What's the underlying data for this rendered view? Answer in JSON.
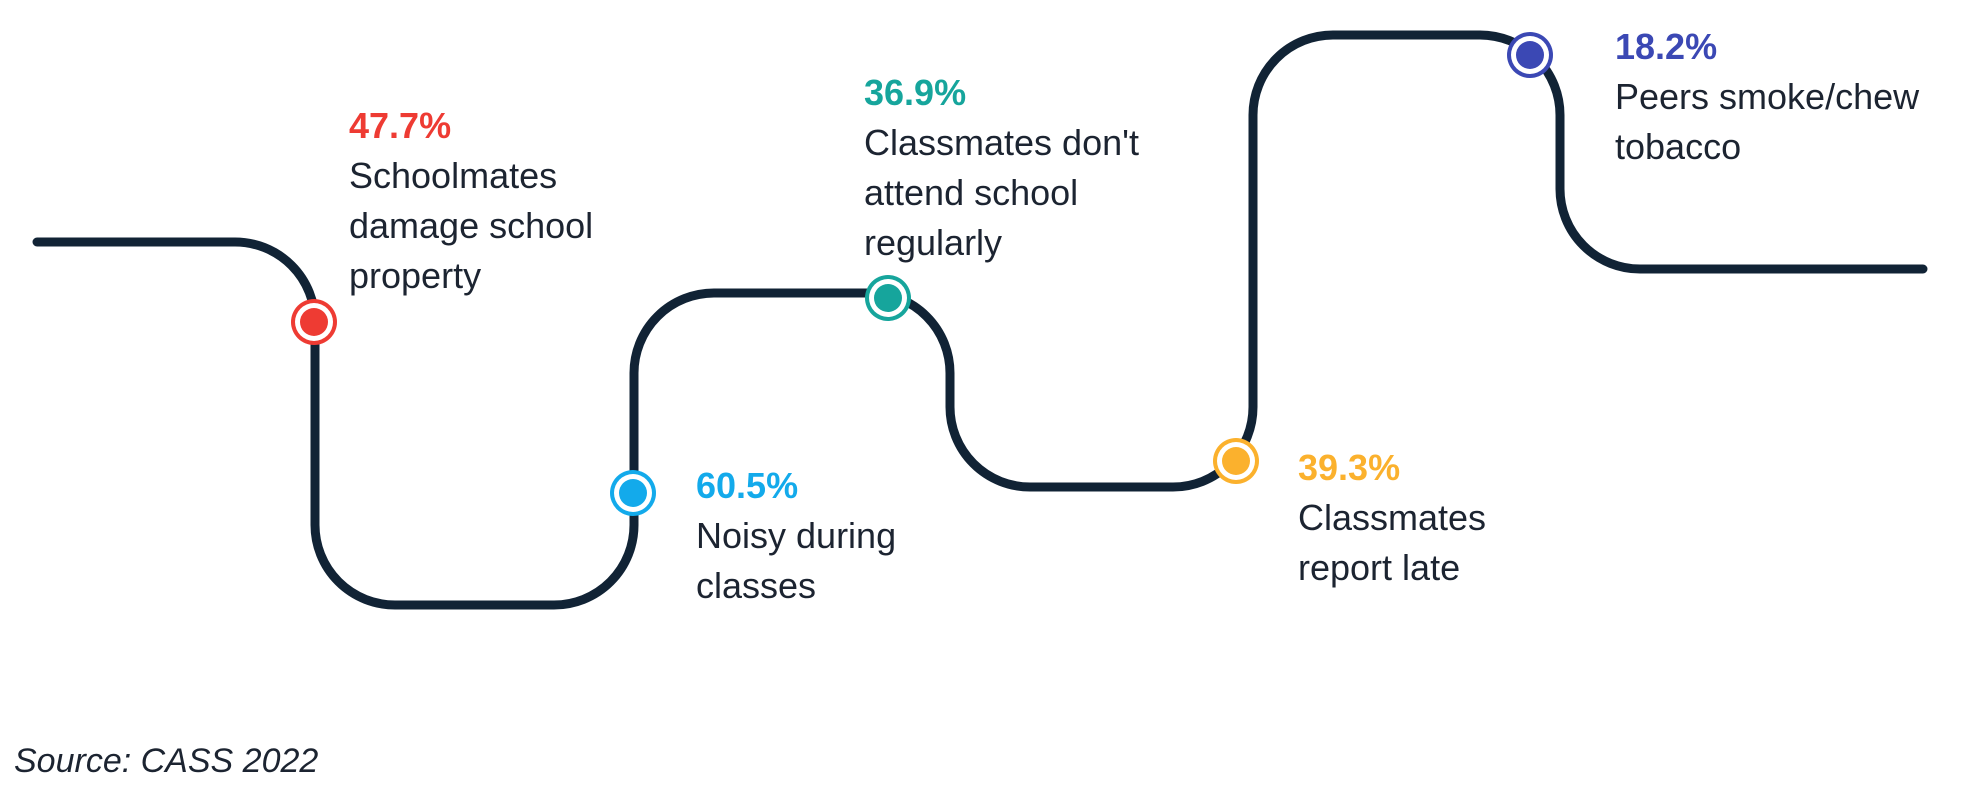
{
  "items": [
    {
      "value": "47.7%",
      "label": "Schoolmates\ndamage school\nproperty",
      "color": "#ee3b33"
    },
    {
      "value": "60.5%",
      "label": "Noisy during\nclasses",
      "color": "#13aaeb"
    },
    {
      "value": "36.9%",
      "label": "Classmates don't\nattend school\nregularly",
      "color": "#16a59c"
    },
    {
      "value": "39.3%",
      "label": "Classmates\nreport late",
      "color": "#fbb12d"
    },
    {
      "value": "18.2%",
      "label": "Peers smoke/chew\ntobacco",
      "color": "#3b48b4"
    }
  ],
  "source": "Source: CASS 2022",
  "line_color": "#112335"
}
